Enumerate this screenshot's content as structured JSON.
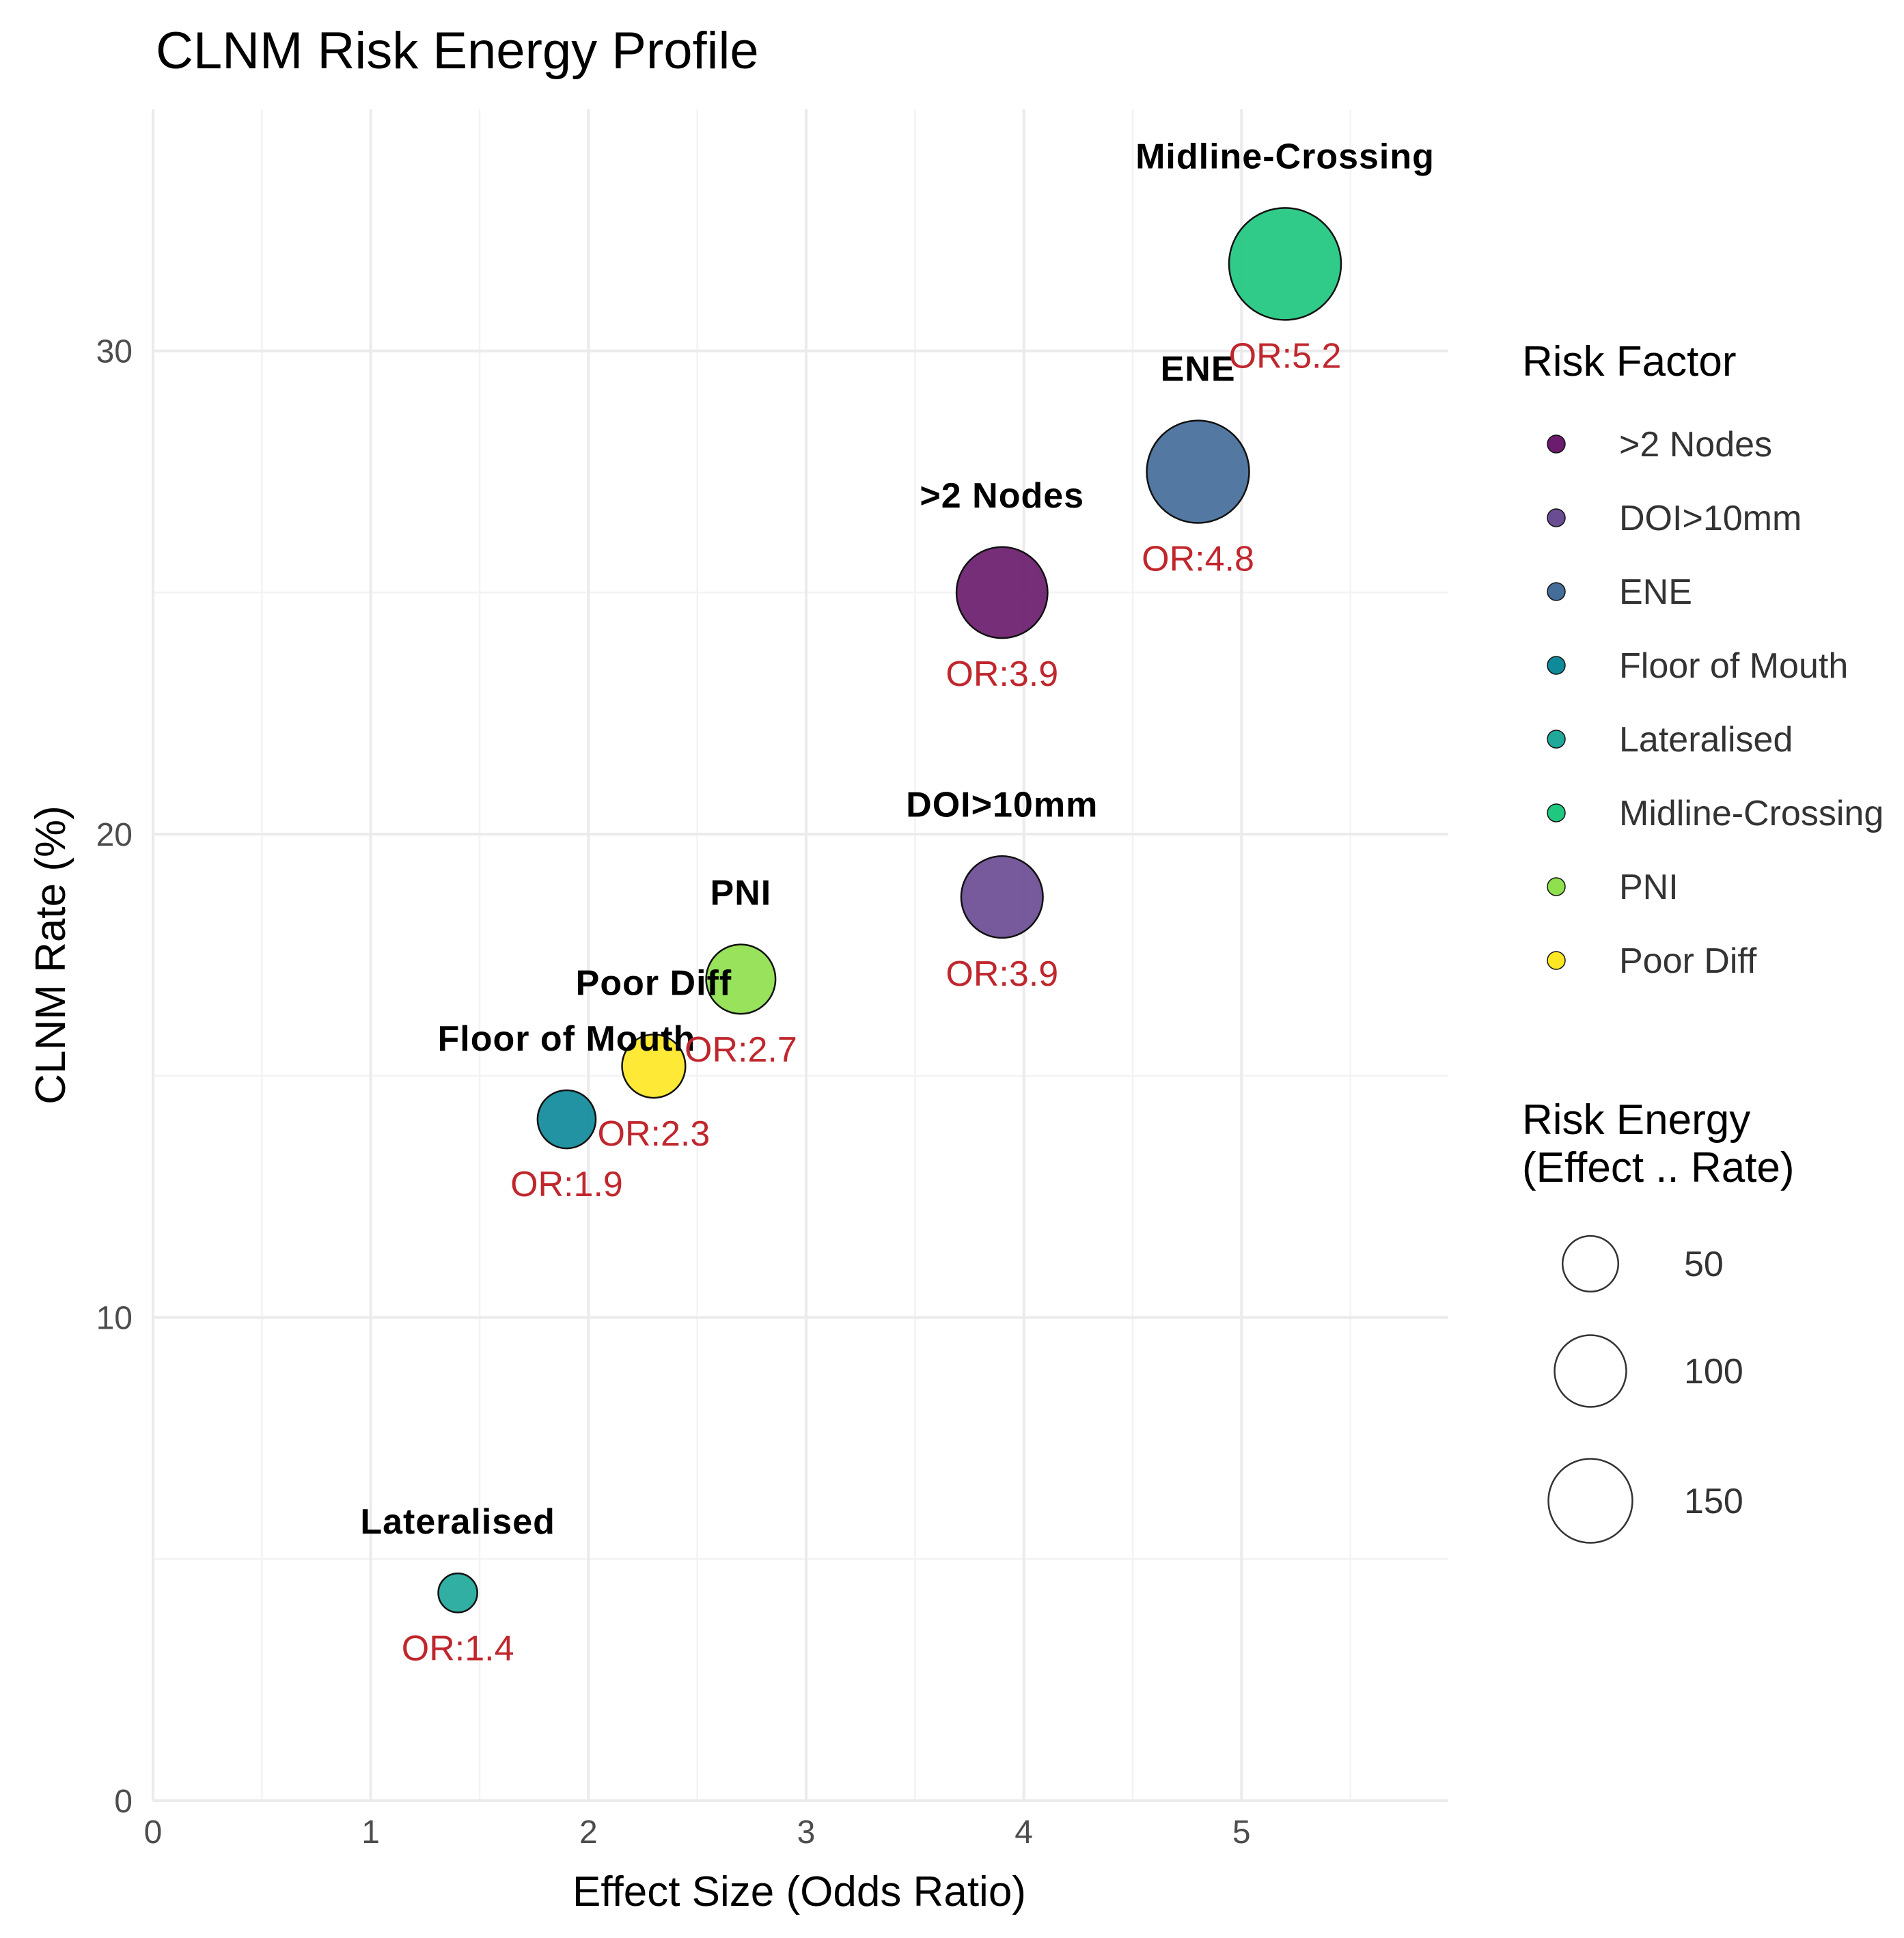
{
  "chart_data": {
    "type": "scatter",
    "title": "CLNM Risk Energy Profile",
    "xlabel": "Effect Size (Odds Ratio)",
    "ylabel": "CLNM Rate (%)",
    "xlim": [
      0,
      5.95
    ],
    "ylim": [
      0,
      35
    ],
    "x_ticks": [
      0,
      1,
      2,
      3,
      4,
      5
    ],
    "y_ticks": [
      0,
      10,
      20,
      30
    ],
    "grid": true,
    "points": [
      {
        "name": ">2 Nodes",
        "x": 3.9,
        "y": 25.0,
        "energy": 97.5,
        "color": "#6b1c6e",
        "or_label": "OR:3.9"
      },
      {
        "name": "DOI>10mm",
        "x": 3.9,
        "y": 18.7,
        "energy": 72.9,
        "color": "#6a4c93",
        "or_label": "OR:3.9"
      },
      {
        "name": "ENE",
        "x": 4.8,
        "y": 27.5,
        "energy": 132.0,
        "color": "#446d99",
        "or_label": "OR:4.8"
      },
      {
        "name": "Floor of Mouth",
        "x": 1.9,
        "y": 14.1,
        "energy": 26.8,
        "color": "#0f8a9a",
        "or_label": "OR:1.9"
      },
      {
        "name": "Lateralised",
        "x": 1.4,
        "y": 4.3,
        "energy": 6.0,
        "color": "#20a89a",
        "or_label": "OR:1.4"
      },
      {
        "name": "Midline-Crossing",
        "x": 5.2,
        "y": 31.8,
        "energy": 165.4,
        "color": "#1fc77f",
        "or_label": "OR:5.2"
      },
      {
        "name": "PNI",
        "x": 2.7,
        "y": 17.0,
        "energy": 45.9,
        "color": "#8fe04e",
        "or_label": "OR:2.7"
      },
      {
        "name": "Poor Diff",
        "x": 2.3,
        "y": 15.2,
        "energy": 35.0,
        "color": "#fde725",
        "or_label": "OR:2.3"
      }
    ],
    "legend_color": {
      "title": "Risk Factor",
      "items": [
        {
          "label": ">2 Nodes",
          "color": "#6b1c6e"
        },
        {
          "label": "DOI>10mm",
          "color": "#6a4c93"
        },
        {
          "label": "ENE",
          "color": "#446d99"
        },
        {
          "label": "Floor of Mouth",
          "color": "#0f8a9a"
        },
        {
          "label": "Lateralised",
          "color": "#20a89a"
        },
        {
          "label": "Midline-Crossing",
          "color": "#1fc77f"
        },
        {
          "label": "PNI",
          "color": "#8fe04e"
        },
        {
          "label": "Poor Diff",
          "color": "#fde725"
        }
      ]
    },
    "legend_size": {
      "title_line1": "Risk Energy",
      "title_line2": "(Effect .. Rate)",
      "items": [
        {
          "label": "50",
          "value": 50
        },
        {
          "label": "100",
          "value": 100
        },
        {
          "label": "150",
          "value": 150
        }
      ]
    }
  }
}
